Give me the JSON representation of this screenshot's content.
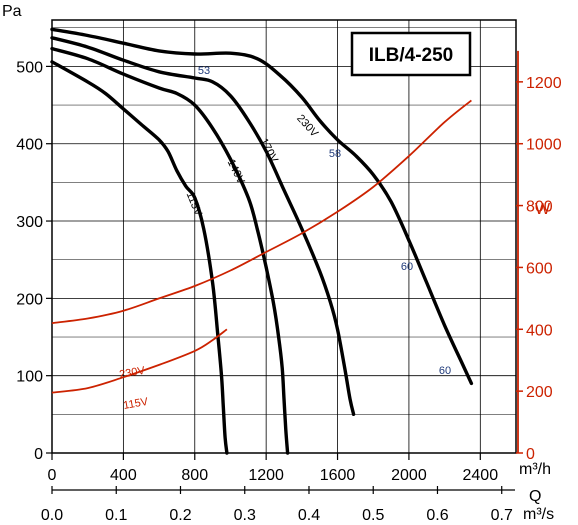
{
  "chart_data": {
    "type": "line",
    "title": "ILB/4-250",
    "colors": {
      "pressure": "#000000",
      "power": "#cc2200",
      "efficiency_label": "#1f3a7a",
      "grid": "#000000"
    },
    "x_axis": {
      "unit": "m³/h",
      "label": "Q",
      "range": [
        0,
        2600
      ],
      "ticks": [
        "0",
        "400",
        "800",
        "1200",
        "1600",
        "2000",
        "2400"
      ],
      "secondary_unit": "m³/s",
      "secondary_ticks": [
        "0.0",
        "0.1",
        "0.2",
        "0.3",
        "0.4",
        "0.5",
        "0.6",
        "0.7"
      ]
    },
    "y_axis": {
      "unit": "Pa",
      "range": [
        0,
        560
      ],
      "ticks": [
        "0",
        "100",
        "200",
        "300",
        "400",
        "500"
      ]
    },
    "y2_axis": {
      "unit": "W",
      "range": [
        0,
        1400
      ],
      "ticks": [
        "0",
        "200",
        "400",
        "600",
        "800",
        "1000",
        "1200"
      ]
    },
    "grid": true,
    "pressure_series": [
      {
        "name": "230V",
        "x": [
          0,
          200,
          400,
          600,
          800,
          1000,
          1150,
          1280,
          1400,
          1500,
          1600,
          1700,
          1800,
          1900,
          2000,
          2100,
          2200,
          2300,
          2350
        ],
        "y": [
          548,
          540,
          530,
          520,
          516,
          517,
          510,
          488,
          460,
          430,
          405,
          385,
          360,
          325,
          275,
          220,
          165,
          115,
          90
        ]
      },
      {
        "name": "170V",
        "x": [
          0,
          200,
          400,
          600,
          800,
          900,
          1000,
          1100,
          1200,
          1300,
          1400,
          1500,
          1560,
          1600,
          1640,
          1670,
          1690
        ],
        "y": [
          537,
          525,
          508,
          493,
          485,
          480,
          462,
          430,
          390,
          340,
          290,
          235,
          195,
          160,
          110,
          70,
          50
        ]
      },
      {
        "name": "140V",
        "x": [
          0,
          200,
          400,
          600,
          700,
          800,
          900,
          1000,
          1100,
          1150,
          1200,
          1240,
          1270,
          1290,
          1300,
          1310,
          1320
        ],
        "y": [
          523,
          510,
          490,
          472,
          465,
          450,
          420,
          380,
          330,
          290,
          240,
          195,
          150,
          110,
          70,
          30,
          0
        ]
      },
      {
        "name": "115V",
        "x": [
          0,
          200,
          300,
          400,
          500,
          600,
          650,
          700,
          750,
          800,
          850,
          900,
          930,
          950,
          960,
          970,
          980
        ],
        "y": [
          506,
          480,
          465,
          445,
          425,
          405,
          390,
          365,
          345,
          330,
          290,
          220,
          150,
          100,
          60,
          20,
          0
        ]
      }
    ],
    "power_series": [
      {
        "name": "230V",
        "x": [
          0,
          200,
          400,
          600,
          800,
          1000,
          1200,
          1400,
          1600,
          1800,
          2000,
          2200,
          2350
        ],
        "y_watts": [
          420,
          435,
          460,
          500,
          540,
          590,
          650,
          710,
          780,
          860,
          960,
          1070,
          1140
        ]
      },
      {
        "name": "115V",
        "x": [
          0,
          200,
          400,
          600,
          800,
          900,
          980
        ],
        "y_watts": [
          195,
          210,
          245,
          285,
          330,
          365,
          400
        ]
      }
    ],
    "efficiency_labels": [
      "53",
      "58",
      "60",
      "60"
    ]
  }
}
